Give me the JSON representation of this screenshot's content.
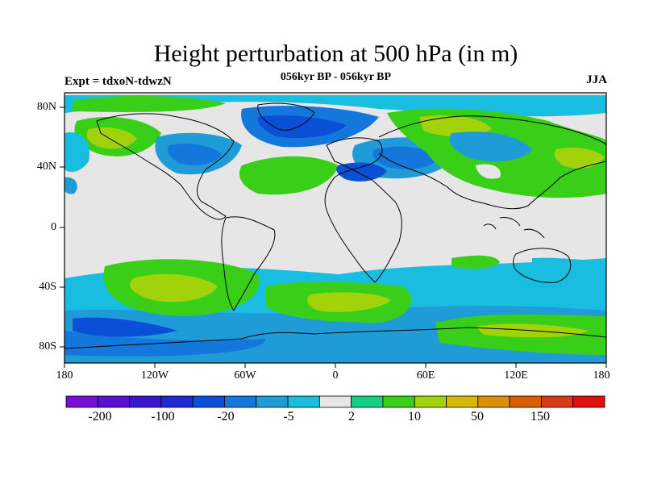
{
  "title": "Height perturbation at 500 hPa (in m)",
  "subtitle": "056kyr BP - 056kyr BP",
  "expt_label": "Expt = tdxoN-tdwzN",
  "season": "JJA",
  "lat_ticks": [
    "80N",
    "40N",
    "0",
    "40S",
    "80S"
  ],
  "lon_ticks": [
    "180",
    "120W",
    "60W",
    "0",
    "60E",
    "120E",
    "180"
  ],
  "colorbar": {
    "colors": [
      "#7a0fd8",
      "#5b0fd3",
      "#3a16cf",
      "#1e2ad0",
      "#0a4fd6",
      "#1377db",
      "#1f9bd8",
      "#19bde0",
      "#e6e6e6",
      "#15cf84",
      "#39cf18",
      "#a2d20a",
      "#d4b90b",
      "#dd8e08",
      "#d85f08",
      "#d83a14",
      "#e10f0f"
    ],
    "labels": [
      "-200",
      "-100",
      "-20",
      "-5",
      "2",
      "10",
      "50",
      "150"
    ]
  }
}
